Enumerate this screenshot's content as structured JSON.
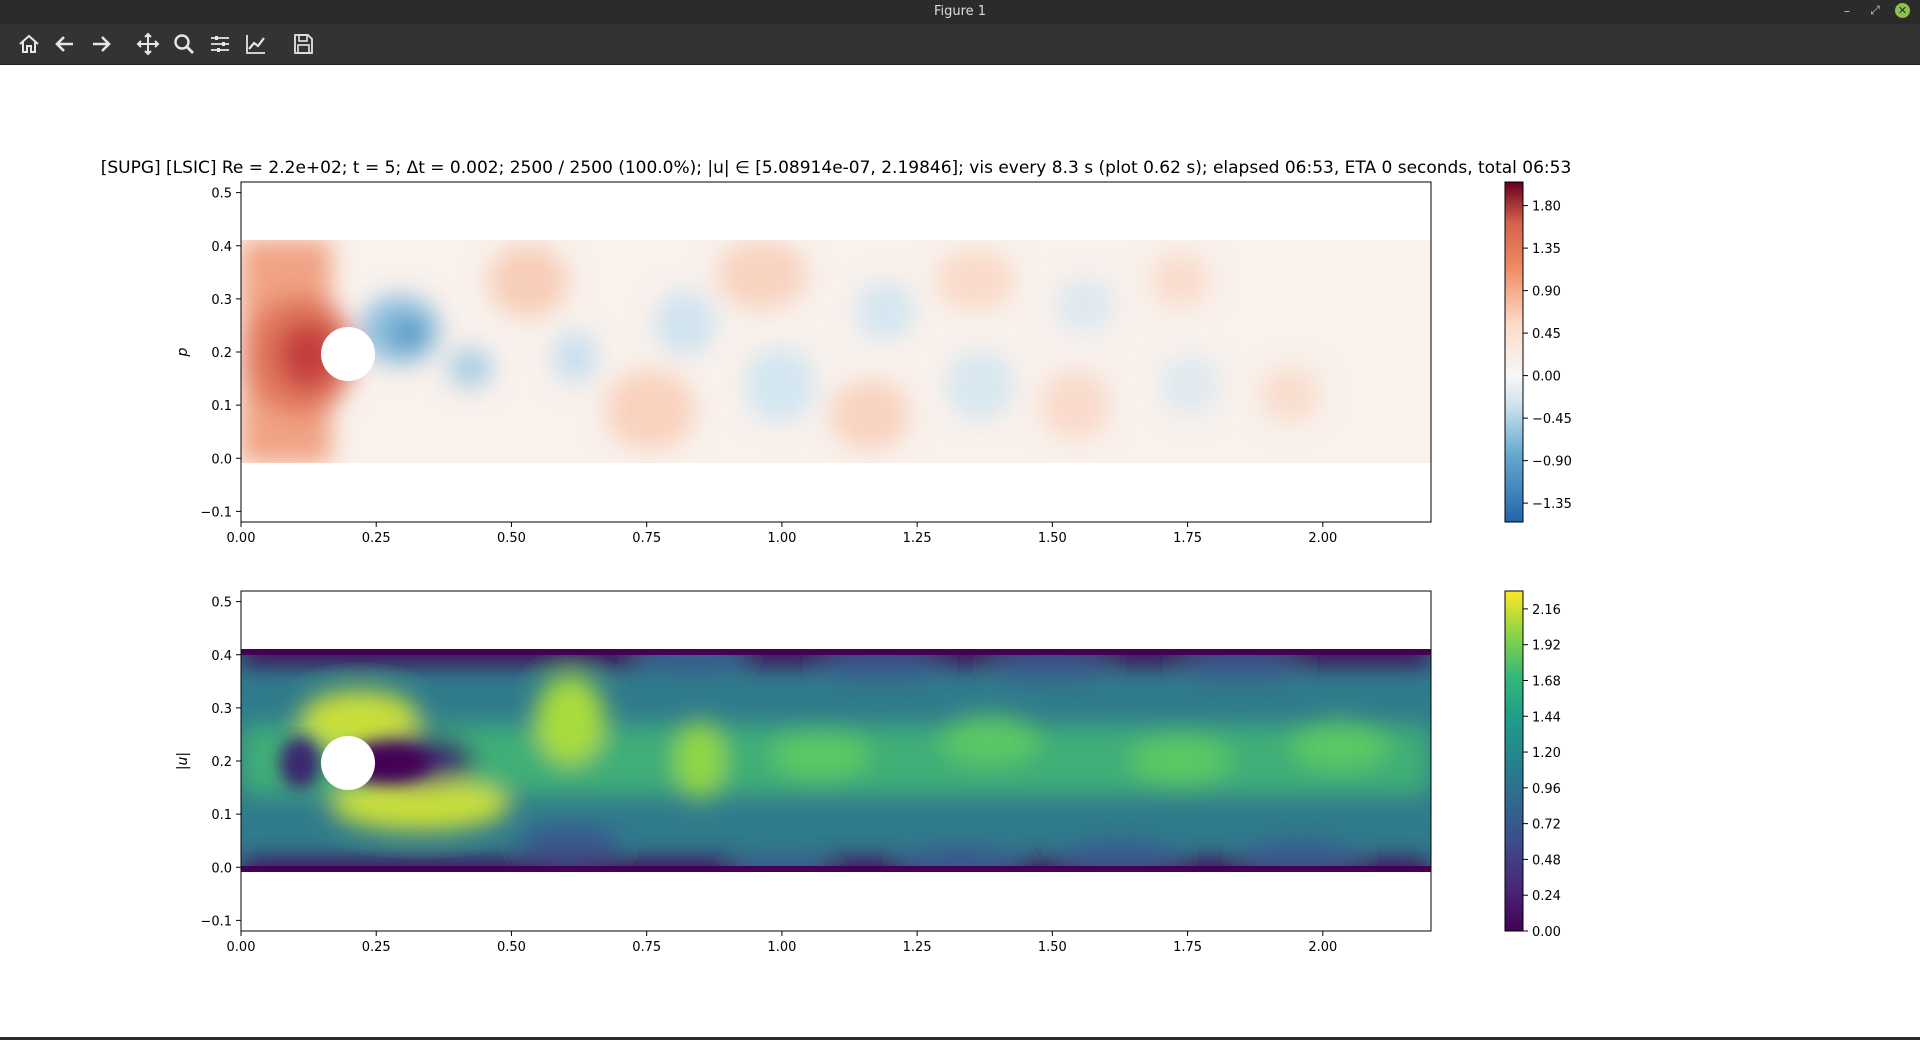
{
  "window": {
    "title": "Figure 1",
    "minimize_glyph": "–",
    "restore_glyph": "⤢",
    "close_glyph": "✕"
  },
  "toolbar": {
    "buttons": [
      "home-icon",
      "back-arrow-icon",
      "forward-arrow-icon",
      "pan-icon",
      "zoom-icon",
      "subplots-icon",
      "edit-axis-icon",
      "save-icon"
    ]
  },
  "figure": {
    "suptitle": "[SUPG] [LSIC] Re = 2.2e+02; t = 5; Δt = 0.002; 2500 / 2500 (100.0%); |u| ∈ [5.08914e-07, 2.19846]; vis every 8.3 s (plot 0.62 s); elapsed 06:53, ETA 0 seconds, total 06:53"
  },
  "chart_data": [
    {
      "type": "heatmap",
      "ylabel": "p",
      "xlim": [
        0.0,
        2.2
      ],
      "ylim": [
        -0.12,
        0.52
      ],
      "xticks": [
        "0.00",
        "0.25",
        "0.50",
        "0.75",
        "1.00",
        "1.25",
        "1.50",
        "1.75",
        "2.00"
      ],
      "yticks": [
        "−0.1",
        "0.0",
        "0.1",
        "0.2",
        "0.3",
        "0.4",
        "0.5"
      ],
      "domain": {
        "x": [
          0.0,
          2.2
        ],
        "y": [
          0.0,
          0.41
        ]
      },
      "obstacle": {
        "cx": 0.2,
        "cy": 0.2,
        "r": 0.05
      },
      "colorbar": {
        "colormap": "RdBu_r",
        "range": [
          -1.55,
          2.05
        ],
        "ticks": [
          "1.80",
          "1.35",
          "0.90",
          "0.45",
          "0.00",
          "−0.45",
          "−0.90",
          "−1.35"
        ]
      }
    },
    {
      "type": "heatmap",
      "ylabel": "|u|",
      "xlim": [
        0.0,
        2.2
      ],
      "ylim": [
        -0.12,
        0.52
      ],
      "xticks": [
        "0.00",
        "0.25",
        "0.50",
        "0.75",
        "1.00",
        "1.25",
        "1.50",
        "1.75",
        "2.00"
      ],
      "yticks": [
        "−0.1",
        "0.0",
        "0.1",
        "0.2",
        "0.3",
        "0.4",
        "0.5"
      ],
      "domain": {
        "x": [
          0.0,
          2.2
        ],
        "y": [
          0.0,
          0.41
        ]
      },
      "obstacle": {
        "cx": 0.2,
        "cy": 0.2,
        "r": 0.05
      },
      "colorbar": {
        "colormap": "viridis",
        "range": [
          0.0,
          2.28
        ],
        "ticks": [
          "2.16",
          "1.92",
          "1.68",
          "1.44",
          "1.20",
          "0.96",
          "0.72",
          "0.48",
          "0.24",
          "0.00"
        ]
      }
    }
  ]
}
